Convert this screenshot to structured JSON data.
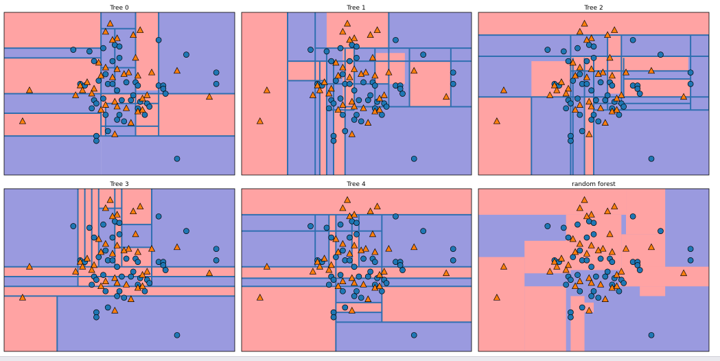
{
  "colors": {
    "class_0_region": "#9a9adf",
    "class_1_region": "#ffa3a3",
    "split_line": "#2f6fb0",
    "class_0_marker": "#1f77b4",
    "class_1_marker": "#ff7f0e"
  },
  "chart_data": [
    {
      "type": "scatter",
      "title": "Tree 0",
      "xlim": [
        0,
        100
      ],
      "ylim": [
        0,
        100
      ],
      "regions": [
        {
          "x0": 0,
          "x1": 42,
          "y0": 0,
          "y1": 100,
          "cls": 1
        },
        {
          "x0": 0,
          "x1": 42,
          "y0": 38,
          "y1": 50,
          "cls": 0
        },
        {
          "x0": 0,
          "x1": 42,
          "y0": 0,
          "y1": 24,
          "cls": 0
        },
        {
          "x0": 42,
          "x1": 100,
          "y0": 0,
          "y1": 100,
          "cls": 0
        },
        {
          "x0": 42,
          "x1": 100,
          "y0": 24,
          "y1": 50,
          "cls": 1
        },
        {
          "x0": 57,
          "x1": 67,
          "y0": 52,
          "y1": 100,
          "cls": 1
        },
        {
          "x0": 42,
          "x1": 48,
          "y0": 66,
          "y1": 90,
          "cls": 0
        },
        {
          "x0": 44,
          "x1": 57,
          "y0": 24,
          "y1": 44,
          "cls": 0
        },
        {
          "x0": 0,
          "x1": 42,
          "y0": 72,
          "y1": 78,
          "cls": 0
        }
      ],
      "vlines": [
        {
          "x": 42,
          "y0": 24,
          "y1": 100
        },
        {
          "x": 48,
          "y0": 50,
          "y1": 90
        },
        {
          "x": 57,
          "y0": 24,
          "y1": 100
        },
        {
          "x": 67,
          "y0": 24,
          "y1": 100
        },
        {
          "x": 44,
          "y0": 24,
          "y1": 44
        }
      ],
      "hlines": [
        {
          "y": 24,
          "x0": 0,
          "x1": 100
        },
        {
          "y": 50,
          "x0": 0,
          "x1": 100
        },
        {
          "y": 38,
          "x0": 0,
          "x1": 42
        },
        {
          "y": 72,
          "x0": 0,
          "x1": 42
        },
        {
          "y": 78,
          "x0": 0,
          "x1": 42
        },
        {
          "y": 66,
          "x0": 42,
          "x1": 57
        },
        {
          "y": 90,
          "x0": 42,
          "x1": 57
        },
        {
          "y": 44,
          "x0": 44,
          "x1": 67
        },
        {
          "y": 30,
          "x0": 42,
          "x1": 67
        }
      ]
    },
    {
      "type": "scatter",
      "title": "Tree 1",
      "xlim": [
        0,
        100
      ],
      "ylim": [
        0,
        100
      ],
      "regions": [
        {
          "x0": 0,
          "x1": 20,
          "y0": 0,
          "y1": 100,
          "cls": 1
        },
        {
          "x0": 20,
          "x1": 100,
          "y0": 0,
          "y1": 100,
          "cls": 0
        },
        {
          "x0": 20,
          "x1": 37,
          "y0": 58,
          "y1": 70,
          "cls": 1
        },
        {
          "x0": 37,
          "x1": 64,
          "y0": 78,
          "y1": 100,
          "cls": 1
        },
        {
          "x0": 44,
          "x1": 49,
          "y0": 40,
          "y1": 78,
          "cls": 1
        },
        {
          "x0": 58,
          "x1": 71,
          "y0": 56,
          "y1": 75,
          "cls": 1
        },
        {
          "x0": 73,
          "x1": 91,
          "y0": 42,
          "y1": 70,
          "cls": 1
        },
        {
          "x0": 34,
          "x1": 37,
          "y0": 0,
          "y1": 56,
          "cls": 1
        },
        {
          "x0": 40,
          "x1": 45,
          "y0": 0,
          "y1": 40,
          "cls": 1
        }
      ],
      "vlines": [
        {
          "x": 20,
          "y0": 0,
          "y1": 100
        },
        {
          "x": 32,
          "y0": 0,
          "y1": 100
        },
        {
          "x": 34,
          "y0": 0,
          "y1": 70
        },
        {
          "x": 37,
          "y0": 0,
          "y1": 78
        },
        {
          "x": 40,
          "y0": 0,
          "y1": 70
        },
        {
          "x": 45,
          "y0": 0,
          "y1": 78
        },
        {
          "x": 49,
          "y0": 40,
          "y1": 78
        },
        {
          "x": 64,
          "y0": 42,
          "y1": 100
        },
        {
          "x": 58,
          "y0": 42,
          "y1": 78
        },
        {
          "x": 73,
          "y0": 42,
          "y1": 78
        },
        {
          "x": 91,
          "y0": 42,
          "y1": 78
        }
      ],
      "hlines": [
        {
          "y": 78,
          "x0": 32,
          "x1": 100
        },
        {
          "y": 70,
          "x0": 20,
          "x1": 100
        },
        {
          "y": 58,
          "x0": 20,
          "x1": 37
        },
        {
          "y": 56,
          "x0": 32,
          "x1": 64
        },
        {
          "y": 42,
          "x0": 45,
          "x1": 100
        },
        {
          "y": 40,
          "x0": 37,
          "x1": 49
        }
      ]
    },
    {
      "type": "scatter",
      "title": "Tree 2",
      "xlim": [
        0,
        100
      ],
      "ylim": [
        0,
        100
      ],
      "regions": [
        {
          "x0": 0,
          "x1": 100,
          "y0": 86,
          "y1": 100,
          "cls": 1
        },
        {
          "x0": 0,
          "x1": 100,
          "y0": 0,
          "y1": 86,
          "cls": 0
        },
        {
          "x0": 0,
          "x1": 23,
          "y0": 0,
          "y1": 48,
          "cls": 1
        },
        {
          "x0": 40,
          "x1": 91,
          "y0": 64,
          "y1": 73,
          "cls": 1
        },
        {
          "x0": 63,
          "x1": 92,
          "y0": 48,
          "y1": 59,
          "cls": 1
        },
        {
          "x0": 23,
          "x1": 40,
          "y0": 48,
          "y1": 70,
          "cls": 1
        },
        {
          "x0": 46,
          "x1": 50,
          "y0": 0,
          "y1": 48,
          "cls": 1
        },
        {
          "x0": 56,
          "x1": 62,
          "y0": 50,
          "y1": 86,
          "cls": 1
        }
      ],
      "vlines": [
        {
          "x": 23,
          "y0": 0,
          "y1": 48
        },
        {
          "x": 40,
          "y0": 0,
          "y1": 86
        },
        {
          "x": 41,
          "y0": 0,
          "y1": 72
        },
        {
          "x": 46,
          "y0": 0,
          "y1": 72
        },
        {
          "x": 50,
          "y0": 0,
          "y1": 72
        },
        {
          "x": 56,
          "y0": 40,
          "y1": 86
        },
        {
          "x": 62,
          "y0": 40,
          "y1": 86
        },
        {
          "x": 63,
          "y0": 48,
          "y1": 72
        },
        {
          "x": 92,
          "y0": 40,
          "y1": 86
        },
        {
          "x": 100,
          "y0": 40,
          "y1": 86
        }
      ],
      "hlines": [
        {
          "y": 86,
          "x0": 0,
          "x1": 100
        },
        {
          "y": 73,
          "x0": 0,
          "x1": 100
        },
        {
          "y": 64,
          "x0": 40,
          "x1": 92
        },
        {
          "y": 59,
          "x0": 63,
          "x1": 92
        },
        {
          "y": 48,
          "x0": 0,
          "x1": 100
        },
        {
          "y": 44,
          "x0": 50,
          "x1": 92
        },
        {
          "y": 40,
          "x0": 50,
          "x1": 100
        }
      ]
    },
    {
      "type": "scatter",
      "title": "Tree 3",
      "xlim": [
        0,
        100
      ],
      "ylim": [
        0,
        100
      ],
      "regions": [
        {
          "x0": 0,
          "x1": 100,
          "y0": 0,
          "y1": 100,
          "cls": 0
        },
        {
          "x0": 32,
          "x1": 64,
          "y0": 40,
          "y1": 100,
          "cls": 1
        },
        {
          "x0": 0,
          "x1": 100,
          "y0": 46,
          "y1": 52,
          "cls": 1
        },
        {
          "x0": 0,
          "x1": 100,
          "y0": 34,
          "y1": 40,
          "cls": 1
        },
        {
          "x0": 0,
          "x1": 23,
          "y0": 0,
          "y1": 34,
          "cls": 1
        },
        {
          "x0": 51,
          "x1": 64,
          "y0": 64,
          "y1": 78,
          "cls": 0
        },
        {
          "x0": 41,
          "x1": 48,
          "y0": 52,
          "y1": 88,
          "cls": 0
        },
        {
          "x0": 45,
          "x1": 58,
          "y0": 40,
          "y1": 46,
          "cls": 0
        }
      ],
      "vlines": [
        {
          "x": 32,
          "y0": 40,
          "y1": 100
        },
        {
          "x": 35,
          "y0": 52,
          "y1": 100
        },
        {
          "x": 38,
          "y0": 52,
          "y1": 100
        },
        {
          "x": 41,
          "y0": 52,
          "y1": 100
        },
        {
          "x": 48,
          "y0": 52,
          "y1": 100
        },
        {
          "x": 51,
          "y0": 52,
          "y1": 100
        },
        {
          "x": 64,
          "y0": 40,
          "y1": 100
        },
        {
          "x": 23,
          "y0": 0,
          "y1": 34
        }
      ],
      "hlines": [
        {
          "y": 52,
          "x0": 0,
          "x1": 100
        },
        {
          "y": 46,
          "x0": 0,
          "x1": 100
        },
        {
          "y": 40,
          "x0": 0,
          "x1": 100
        },
        {
          "y": 34,
          "x0": 0,
          "x1": 100
        },
        {
          "y": 78,
          "x0": 48,
          "x1": 64
        },
        {
          "y": 64,
          "x0": 48,
          "x1": 64
        },
        {
          "y": 88,
          "x0": 41,
          "x1": 51
        }
      ]
    },
    {
      "type": "scatter",
      "title": "Tree 4",
      "xlim": [
        0,
        100
      ],
      "ylim": [
        0,
        100
      ],
      "regions": [
        {
          "x0": 0,
          "x1": 100,
          "y0": 0,
          "y1": 100,
          "cls": 0
        },
        {
          "x0": 0,
          "x1": 100,
          "y0": 84,
          "y1": 100,
          "cls": 1
        },
        {
          "x0": 0,
          "x1": 100,
          "y0": 45,
          "y1": 52,
          "cls": 1
        },
        {
          "x0": 0,
          "x1": 41,
          "y0": 0,
          "y1": 40,
          "cls": 1
        },
        {
          "x0": 61,
          "x1": 100,
          "y0": 18,
          "y1": 40,
          "cls": 1
        },
        {
          "x0": 41,
          "x1": 61,
          "y0": 24,
          "y1": 30,
          "cls": 1
        },
        {
          "x0": 38,
          "x1": 41,
          "y0": 52,
          "y1": 84,
          "cls": 1
        },
        {
          "x0": 48,
          "x1": 51,
          "y0": 52,
          "y1": 74,
          "cls": 1
        }
      ],
      "vlines": [
        {
          "x": 32,
          "y0": 52,
          "y1": 84
        },
        {
          "x": 38,
          "y0": 52,
          "y1": 84
        },
        {
          "x": 41,
          "y0": 0,
          "y1": 84
        },
        {
          "x": 48,
          "y0": 52,
          "y1": 84
        },
        {
          "x": 51,
          "y0": 52,
          "y1": 84
        },
        {
          "x": 61,
          "y0": 18,
          "y1": 84
        }
      ],
      "hlines": [
        {
          "y": 84,
          "x0": 0,
          "x1": 100
        },
        {
          "y": 74,
          "x0": 0,
          "x1": 61
        },
        {
          "y": 52,
          "x0": 0,
          "x1": 100
        },
        {
          "y": 45,
          "x0": 0,
          "x1": 100
        },
        {
          "y": 40,
          "x0": 0,
          "x1": 100
        },
        {
          "y": 30,
          "x0": 41,
          "x1": 61
        },
        {
          "y": 24,
          "x0": 41,
          "x1": 61
        },
        {
          "y": 18,
          "x0": 41,
          "x1": 100
        }
      ]
    },
    {
      "type": "scatter",
      "title": "random forest",
      "xlim": [
        0,
        100
      ],
      "ylim": [
        0,
        100
      ],
      "regions": [
        {
          "x0": 0,
          "x1": 100,
          "y0": 0,
          "y1": 100,
          "cls": 0
        },
        {
          "x0": 0,
          "x1": 64,
          "y0": 84,
          "y1": 100,
          "cls": 1
        },
        {
          "x0": 64,
          "x1": 81,
          "y0": 72,
          "y1": 100,
          "cls": 1
        },
        {
          "x0": 0,
          "x1": 20,
          "y0": 0,
          "y1": 58,
          "cls": 1
        },
        {
          "x0": 20,
          "x1": 40,
          "y0": 48,
          "y1": 68,
          "cls": 1
        },
        {
          "x0": 38,
          "x1": 62,
          "y0": 50,
          "y1": 84,
          "cls": 1
        },
        {
          "x0": 62,
          "x1": 81,
          "y0": 40,
          "y1": 72,
          "cls": 1
        },
        {
          "x0": 20,
          "x1": 38,
          "y0": 0,
          "y1": 40,
          "cls": 1
        },
        {
          "x0": 40,
          "x1": 46,
          "y0": 0,
          "y1": 34,
          "cls": 1
        },
        {
          "x0": 61,
          "x1": 100,
          "y0": 40,
          "y1": 52,
          "cls": 1
        },
        {
          "x0": 81,
          "x1": 100,
          "y0": 44,
          "y1": 52,
          "cls": 1
        },
        {
          "x0": 46,
          "x1": 50,
          "y0": 24,
          "y1": 30,
          "cls": 1
        },
        {
          "x0": 70,
          "x1": 81,
          "y0": 34,
          "y1": 40,
          "cls": 1
        }
      ],
      "vlines": [],
      "hlines": []
    }
  ],
  "points": {
    "class_0": [
      [
        30,
        77
      ],
      [
        37,
        76
      ],
      [
        39,
        70
      ],
      [
        43,
        78
      ],
      [
        48,
        80
      ],
      [
        50,
        79
      ],
      [
        47,
        70
      ],
      [
        50,
        72
      ],
      [
        44,
        62
      ],
      [
        41,
        58
      ],
      [
        33,
        56
      ],
      [
        35,
        55
      ],
      [
        45,
        56
      ],
      [
        47,
        56
      ],
      [
        53,
        57
      ],
      [
        57,
        57
      ],
      [
        58,
        55
      ],
      [
        67,
        55
      ],
      [
        69,
        55
      ],
      [
        69,
        53
      ],
      [
        70,
        50
      ],
      [
        43,
        47
      ],
      [
        39,
        46
      ],
      [
        49,
        52
      ],
      [
        51,
        46
      ],
      [
        55,
        46
      ],
      [
        59,
        45
      ],
      [
        62,
        44
      ],
      [
        63,
        42
      ],
      [
        40,
        44
      ],
      [
        38,
        41
      ],
      [
        61,
        37
      ],
      [
        44,
        37
      ],
      [
        49,
        34
      ],
      [
        52,
        33
      ],
      [
        40,
        24
      ],
      [
        40,
        21
      ],
      [
        67,
        83
      ],
      [
        79,
        74
      ],
      [
        92,
        63
      ],
      [
        92,
        56
      ],
      [
        75,
        10
      ],
      [
        56,
        49
      ],
      [
        58,
        41
      ],
      [
        50,
        37
      ],
      [
        45,
        27
      ]
    ],
    "class_1": [
      [
        46,
        93
      ],
      [
        44,
        88
      ],
      [
        49,
        84
      ],
      [
        47,
        83
      ],
      [
        56,
        86
      ],
      [
        59,
        89
      ],
      [
        57,
        72
      ],
      [
        41,
        69
      ],
      [
        44,
        66
      ],
      [
        49,
        65
      ],
      [
        42,
        61
      ],
      [
        54,
        63
      ],
      [
        36,
        57
      ],
      [
        33,
        55
      ],
      [
        39,
        53
      ],
      [
        38,
        50
      ],
      [
        47,
        60
      ],
      [
        52,
        62
      ],
      [
        58,
        61
      ],
      [
        64,
        63
      ],
      [
        75,
        64
      ],
      [
        34,
        52
      ],
      [
        31,
        49
      ],
      [
        48,
        45
      ],
      [
        44,
        43
      ],
      [
        53,
        41
      ],
      [
        58,
        39
      ],
      [
        60,
        47
      ],
      [
        62,
        49
      ],
      [
        11,
        52
      ],
      [
        8,
        33
      ],
      [
        42,
        40
      ],
      [
        49,
        42
      ],
      [
        89,
        48
      ],
      [
        48,
        25
      ],
      [
        55,
        32
      ],
      [
        60,
        40
      ]
    ]
  }
}
